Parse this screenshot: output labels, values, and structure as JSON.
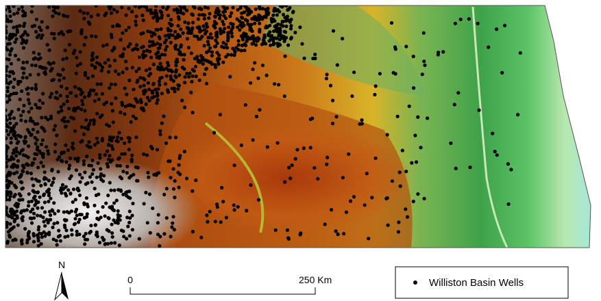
{
  "map": {
    "north_label": "N"
  },
  "scale_bar": {
    "start_label": "0",
    "end_label": "250 Km"
  },
  "legend": {
    "label": "Williston Basin Wells"
  }
}
